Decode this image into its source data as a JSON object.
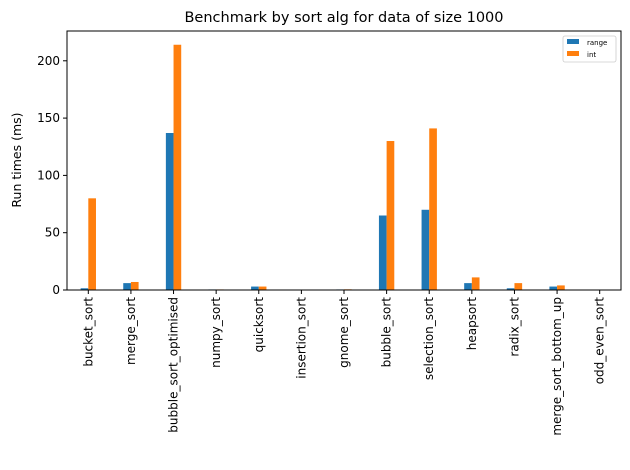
{
  "chart_data": {
    "type": "bar",
    "title": "Benchmark by sort alg for data of size 1000",
    "xlabel": "",
    "ylabel": "Run times (ms)",
    "ylim": [
      0,
      226
    ],
    "yticks": [
      0,
      50,
      100,
      150,
      200
    ],
    "categories": [
      "bucket_sort",
      "merge_sort",
      "bubble_sort_optimised",
      "numpy_sort",
      "quicksort",
      "insertion_sort",
      "gnome_sort",
      "bubble_sort",
      "selection_sort",
      "heapsort",
      "radix_sort",
      "merge_sort_bottom_up",
      "odd_even_sort"
    ],
    "series": [
      {
        "name": "range",
        "color": "#1f77b4",
        "values": [
          1.5,
          6,
          137,
          0.5,
          3,
          0.4,
          0.5,
          65,
          70,
          6,
          1.5,
          3,
          0.3
        ]
      },
      {
        "name": "int",
        "color": "#ff7f0e",
        "values": [
          80,
          7,
          214,
          0.5,
          3,
          0.4,
          0.6,
          130,
          141,
          11,
          6,
          4,
          0.3
        ]
      }
    ],
    "legend_position": "top-right",
    "grid": false
  }
}
